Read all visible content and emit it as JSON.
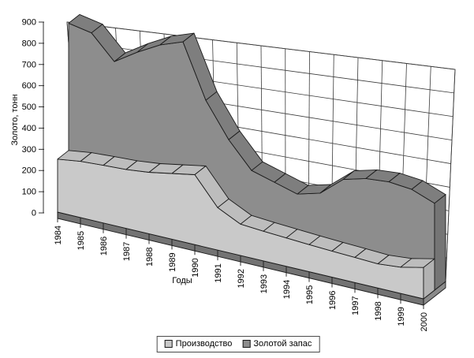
{
  "chart_data": {
    "type": "area",
    "view": "3d",
    "title": "",
    "xlabel": "Годы",
    "ylabel": "Золото, тонн",
    "ylim": [
      0,
      900
    ],
    "ytick_step": 100,
    "grid": true,
    "legend_position": "bottom",
    "categories": [
      "1984",
      "1985",
      "1986",
      "1987",
      "1988",
      "1989",
      "1990",
      "1991",
      "1992",
      "1993",
      "1994",
      "1995",
      "1996",
      "1997",
      "1998",
      "1999",
      "2000"
    ],
    "series": [
      {
        "name": "Производство",
        "color": "#c9c9c9",
        "band_color": "#bdbdbd",
        "end_color": "#b2b2b2",
        "values": [
          250,
          265,
          272,
          278,
          290,
          310,
          330,
          200,
          148,
          140,
          134,
          128,
          123,
          119,
          114,
          124,
          148
        ]
      },
      {
        "name": "Золотой запас",
        "color": "#8d8d8d",
        "band_color": "#7e7e7e",
        "end_color": "#757575",
        "values": [
          850,
          830,
          720,
          790,
          850,
          890,
          640,
          480,
          360,
          330,
          300,
          330,
          420,
          450,
          460,
          450,
          410
        ]
      }
    ]
  }
}
